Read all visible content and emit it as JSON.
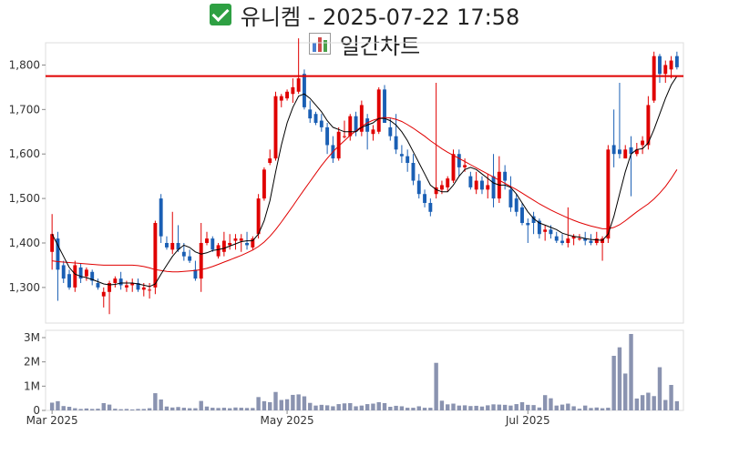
{
  "header": {
    "title": "유니켐 - 2025-07-22 17:58",
    "subtitle": "일간차트",
    "check_icon": "check-mark-icon",
    "chart_icon": "bar-chart-icon"
  },
  "colors": {
    "up": "#e00000",
    "down": "#1a5fb4",
    "ma_short": "#000000",
    "ma_long": "#e00000",
    "reference_line": "#e00000",
    "volume": "#8a93b0"
  },
  "chart_data": [
    {
      "type": "candlestick",
      "title": "",
      "xlabel": "",
      "ylabel": "",
      "ylim": [
        1220,
        1850
      ],
      "yticks": [
        1300,
        1400,
        1500,
        1600,
        1700,
        1800
      ],
      "ytick_labels": [
        "1,300",
        "1,400",
        "1,500",
        "1,600",
        "1,700",
        "1,800"
      ],
      "xticks": [
        {
          "index": 0,
          "label": "Mar 2025"
        },
        {
          "index": 41,
          "label": "May 2025"
        },
        {
          "index": 83,
          "label": "Jul 2025"
        }
      ],
      "reference_line": 1775,
      "grid": false,
      "series": [
        {
          "ohlc": [
            [
              1380,
              1465,
              1340,
              1420
            ],
            [
              1410,
              1425,
              1270,
              1340
            ],
            [
              1350,
              1360,
              1310,
              1320
            ],
            [
              1330,
              1340,
              1295,
              1300
            ],
            [
              1300,
              1360,
              1290,
              1350
            ],
            [
              1345,
              1355,
              1310,
              1320
            ],
            [
              1325,
              1345,
              1315,
              1340
            ],
            [
              1335,
              1340,
              1305,
              1315
            ],
            [
              1310,
              1320,
              1295,
              1300
            ],
            [
              1280,
              1300,
              1255,
              1290
            ],
            [
              1290,
              1315,
              1240,
              1310
            ],
            [
              1310,
              1325,
              1300,
              1320
            ],
            [
              1320,
              1335,
              1295,
              1305
            ],
            [
              1300,
              1315,
              1290,
              1305
            ],
            [
              1305,
              1320,
              1290,
              1310
            ],
            [
              1310,
              1320,
              1290,
              1295
            ],
            [
              1295,
              1310,
              1280,
              1300
            ],
            [
              1295,
              1310,
              1275,
              1295
            ],
            [
              1300,
              1450,
              1285,
              1445
            ],
            [
              1500,
              1510,
              1400,
              1415
            ],
            [
              1400,
              1415,
              1385,
              1390
            ],
            [
              1385,
              1470,
              1375,
              1400
            ],
            [
              1400,
              1440,
              1380,
              1385
            ],
            [
              1380,
              1400,
              1360,
              1370
            ],
            [
              1370,
              1385,
              1355,
              1360
            ],
            [
              1340,
              1360,
              1315,
              1320
            ],
            [
              1320,
              1445,
              1290,
              1400
            ],
            [
              1400,
              1425,
              1395,
              1410
            ],
            [
              1410,
              1415,
              1380,
              1385
            ],
            [
              1370,
              1400,
              1365,
              1395
            ],
            [
              1380,
              1425,
              1370,
              1405
            ],
            [
              1395,
              1420,
              1385,
              1400
            ],
            [
              1405,
              1420,
              1385,
              1410
            ],
            [
              1405,
              1420,
              1380,
              1410
            ],
            [
              1400,
              1425,
              1385,
              1395
            ],
            [
              1390,
              1415,
              1385,
              1410
            ],
            [
              1420,
              1510,
              1410,
              1500
            ],
            [
              1500,
              1570,
              1495,
              1565
            ],
            [
              1580,
              1610,
              1575,
              1590
            ],
            [
              1590,
              1740,
              1585,
              1730
            ],
            [
              1720,
              1735,
              1705,
              1730
            ],
            [
              1725,
              1745,
              1720,
              1740
            ],
            [
              1735,
              1770,
              1715,
              1750
            ],
            [
              1740,
              1860,
              1735,
              1770
            ],
            [
              1780,
              1790,
              1700,
              1705
            ],
            [
              1700,
              1720,
              1670,
              1680
            ],
            [
              1690,
              1695,
              1665,
              1670
            ],
            [
              1675,
              1690,
              1650,
              1660
            ],
            [
              1660,
              1670,
              1600,
              1620
            ],
            [
              1620,
              1640,
              1580,
              1590
            ],
            [
              1590,
              1660,
              1585,
              1650
            ],
            [
              1640,
              1675,
              1635,
              1640
            ],
            [
              1640,
              1690,
              1630,
              1685
            ],
            [
              1685,
              1695,
              1640,
              1650
            ],
            [
              1650,
              1720,
              1640,
              1710
            ],
            [
              1680,
              1690,
              1610,
              1650
            ],
            [
              1645,
              1665,
              1630,
              1655
            ],
            [
              1650,
              1750,
              1645,
              1745
            ],
            [
              1745,
              1755,
              1670,
              1670
            ],
            [
              1660,
              1680,
              1630,
              1640
            ],
            [
              1640,
              1690,
              1600,
              1610
            ],
            [
              1600,
              1620,
              1580,
              1595
            ],
            [
              1595,
              1610,
              1560,
              1580
            ],
            [
              1580,
              1600,
              1530,
              1540
            ],
            [
              1540,
              1555,
              1500,
              1510
            ],
            [
              1510,
              1520,
              1480,
              1490
            ],
            [
              1490,
              1500,
              1460,
              1470
            ],
            [
              1510,
              1760,
              1500,
              1525
            ],
            [
              1520,
              1540,
              1510,
              1530
            ],
            [
              1525,
              1550,
              1515,
              1545
            ],
            [
              1540,
              1610,
              1535,
              1600
            ],
            [
              1600,
              1610,
              1550,
              1570
            ],
            [
              1570,
              1590,
              1560,
              1575
            ],
            [
              1550,
              1560,
              1520,
              1525
            ],
            [
              1520,
              1560,
              1510,
              1540
            ],
            [
              1540,
              1550,
              1510,
              1520
            ],
            [
              1520,
              1555,
              1500,
              1530
            ],
            [
              1550,
              1600,
              1480,
              1500
            ],
            [
              1500,
              1595,
              1490,
              1560
            ],
            [
              1560,
              1575,
              1520,
              1540
            ],
            [
              1520,
              1550,
              1470,
              1480
            ],
            [
              1500,
              1510,
              1460,
              1470
            ],
            [
              1480,
              1490,
              1440,
              1445
            ],
            [
              1445,
              1455,
              1400,
              1440
            ],
            [
              1460,
              1470,
              1420,
              1445
            ],
            [
              1450,
              1455,
              1410,
              1420
            ],
            [
              1425,
              1440,
              1405,
              1430
            ],
            [
              1430,
              1440,
              1410,
              1420
            ],
            [
              1415,
              1425,
              1400,
              1405
            ],
            [
              1405,
              1420,
              1395,
              1400
            ],
            [
              1400,
              1480,
              1390,
              1410
            ],
            [
              1410,
              1420,
              1395,
              1415
            ],
            [
              1410,
              1420,
              1405,
              1410
            ],
            [
              1410,
              1425,
              1395,
              1405
            ],
            [
              1405,
              1420,
              1395,
              1400
            ],
            [
              1400,
              1425,
              1395,
              1410
            ],
            [
              1400,
              1415,
              1360,
              1410
            ],
            [
              1410,
              1620,
              1400,
              1610
            ],
            [
              1620,
              1700,
              1570,
              1600
            ],
            [
              1610,
              1760,
              1590,
              1600
            ],
            [
              1590,
              1620,
              1590,
              1610
            ],
            [
              1615,
              1640,
              1505,
              1600
            ],
            [
              1600,
              1625,
              1595,
              1610
            ],
            [
              1620,
              1640,
              1600,
              1630
            ],
            [
              1620,
              1730,
              1610,
              1710
            ],
            [
              1720,
              1830,
              1715,
              1820
            ],
            [
              1820,
              1825,
              1760,
              1780
            ],
            [
              1780,
              1810,
              1760,
              1800
            ],
            [
              1790,
              1820,
              1770,
              1810
            ],
            [
              1820,
              1830,
              1790,
              1795
            ]
          ],
          "ma_short": [
            1420,
            1395,
            1370,
            1345,
            1330,
            1325,
            1322,
            1318,
            1313,
            1308,
            1306,
            1307,
            1310,
            1310,
            1310,
            1308,
            1305,
            1302,
            1308,
            1330,
            1350,
            1370,
            1385,
            1395,
            1390,
            1380,
            1375,
            1378,
            1383,
            1385,
            1388,
            1393,
            1398,
            1403,
            1405,
            1405,
            1420,
            1450,
            1495,
            1560,
            1620,
            1670,
            1705,
            1730,
            1735,
            1725,
            1710,
            1695,
            1675,
            1660,
            1655,
            1650,
            1650,
            1650,
            1660,
            1665,
            1670,
            1680,
            1680,
            1675,
            1665,
            1650,
            1630,
            1605,
            1580,
            1555,
            1530,
            1520,
            1515,
            1515,
            1530,
            1550,
            1565,
            1570,
            1565,
            1555,
            1545,
            1535,
            1530,
            1530,
            1525,
            1510,
            1490,
            1470,
            1455,
            1445,
            1440,
            1435,
            1430,
            1422,
            1418,
            1415,
            1413,
            1410,
            1408,
            1407,
            1406,
            1420,
            1460,
            1510,
            1560,
            1600,
            1610,
            1612,
            1625,
            1655,
            1690,
            1725,
            1755,
            1775
          ],
          "ma_long": [
            1360,
            1358,
            1357,
            1356,
            1355,
            1354,
            1353,
            1352,
            1351,
            1350,
            1350,
            1350,
            1350,
            1350,
            1350,
            1349,
            1347,
            1344,
            1340,
            1338,
            1336,
            1335,
            1335,
            1336,
            1337,
            1338,
            1340,
            1343,
            1347,
            1352,
            1357,
            1362,
            1367,
            1372,
            1378,
            1384,
            1392,
            1402,
            1415,
            1430,
            1447,
            1465,
            1483,
            1502,
            1520,
            1538,
            1556,
            1574,
            1590,
            1605,
            1618,
            1630,
            1642,
            1652,
            1662,
            1670,
            1676,
            1680,
            1682,
            1681,
            1678,
            1673,
            1666,
            1658,
            1649,
            1640,
            1630,
            1621,
            1612,
            1604,
            1597,
            1590,
            1583,
            1576,
            1569,
            1562,
            1555,
            1548,
            1541,
            1534,
            1527,
            1520,
            1512,
            1504,
            1496,
            1488,
            1481,
            1474,
            1468,
            1462,
            1456,
            1451,
            1446,
            1442,
            1438,
            1435,
            1432,
            1432,
            1435,
            1441,
            1450,
            1460,
            1470,
            1479,
            1488,
            1499,
            1512,
            1527,
            1545,
            1565
          ]
        }
      ]
    },
    {
      "type": "bar",
      "title": "",
      "xlabel": "",
      "ylabel": "",
      "ylim": [
        0,
        3300000
      ],
      "yticks": [
        0,
        1000000,
        2000000,
        3000000
      ],
      "ytick_labels": [
        "0",
        "1M",
        "2M",
        "3M"
      ],
      "xticks": [
        {
          "index": 0,
          "label": "Mar 2025"
        },
        {
          "index": 41,
          "label": "May 2025"
        },
        {
          "index": 83,
          "label": "Jul 2025"
        }
      ],
      "series": [
        {
          "values": [
            320000,
            380000,
            180000,
            150000,
            90000,
            60000,
            80000,
            60000,
            70000,
            300000,
            240000,
            70000,
            50000,
            60000,
            40000,
            60000,
            60000,
            90000,
            710000,
            450000,
            160000,
            120000,
            140000,
            110000,
            90000,
            90000,
            390000,
            160000,
            110000,
            100000,
            110000,
            90000,
            120000,
            110000,
            100000,
            100000,
            550000,
            380000,
            340000,
            760000,
            430000,
            460000,
            640000,
            660000,
            580000,
            310000,
            200000,
            230000,
            210000,
            170000,
            260000,
            290000,
            300000,
            170000,
            200000,
            260000,
            280000,
            340000,
            300000,
            150000,
            190000,
            170000,
            110000,
            110000,
            170000,
            110000,
            110000,
            1960000,
            400000,
            250000,
            280000,
            200000,
            210000,
            180000,
            190000,
            160000,
            210000,
            250000,
            240000,
            230000,
            200000,
            260000,
            340000,
            230000,
            220000,
            120000,
            630000,
            500000,
            200000,
            240000,
            280000,
            170000,
            70000,
            200000,
            100000,
            120000,
            90000,
            110000,
            2250000,
            2600000,
            1520000,
            3150000,
            490000,
            630000,
            730000,
            590000,
            1780000,
            430000,
            1050000,
            380000
          ]
        }
      ]
    }
  ]
}
